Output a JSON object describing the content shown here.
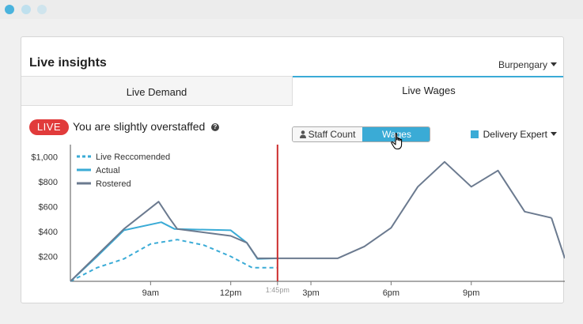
{
  "window": {
    "traffic_lights": [
      "close",
      "minimize",
      "zoom"
    ]
  },
  "card": {
    "title": "Live insights",
    "location": "Burpengary"
  },
  "tabs": [
    {
      "label": "Live Demand",
      "active": false
    },
    {
      "label": "Live Wages",
      "active": true
    }
  ],
  "status": {
    "badge": "LIVE",
    "text": "You are slightly overstaffed",
    "help": "?"
  },
  "toggle": {
    "staff_label": "Staff Count",
    "wages_label": "Wages",
    "selected": "Wages"
  },
  "role": {
    "label": "Delivery Expert",
    "color": "#3aabd6"
  },
  "colors": {
    "accent": "#3aabd6",
    "live": "#e13b3b",
    "rostered": "#6b7a8f",
    "now_line": "#cc2e2e"
  },
  "chart_data": {
    "type": "line",
    "title": "",
    "xlabel": "",
    "ylabel": "",
    "x_ticks": [
      "9am",
      "12pm",
      "1:45pm",
      "3pm",
      "6pm",
      "9pm"
    ],
    "x_tick_hours": [
      9,
      12,
      13.75,
      15,
      18,
      21
    ],
    "now_hour": 13.75,
    "now_label": "1:45pm",
    "xlim": [
      6,
      24.5
    ],
    "y_ticks": [
      "$200",
      "$400",
      "$600",
      "$800",
      "$1,000"
    ],
    "y_tick_values": [
      200,
      400,
      600,
      800,
      1000
    ],
    "ylim": [
      0,
      1130
    ],
    "legend": {
      "position": "top-left"
    },
    "series": [
      {
        "name": "Live Reccomended",
        "style": "dashed",
        "color": "#3aabd6",
        "x": [
          6,
          7,
          8,
          9,
          10,
          11,
          12,
          12.8,
          13.75
        ],
        "y": [
          0,
          110,
          180,
          300,
          335,
          290,
          200,
          110,
          110
        ]
      },
      {
        "name": "Actual",
        "style": "solid",
        "color": "#3aabd6",
        "x": [
          6,
          7,
          8,
          9.4,
          9.9,
          12,
          12.6,
          13,
          13.75
        ],
        "y": [
          0,
          200,
          410,
          475,
          420,
          410,
          310,
          180,
          185
        ]
      },
      {
        "name": "Rostered",
        "style": "solid",
        "color": "#6b7a8f",
        "x": [
          6,
          7,
          8,
          9.3,
          9.7,
          10,
          12,
          12.6,
          13,
          13.75,
          16,
          17,
          18,
          19,
          20,
          21,
          22,
          23,
          24
        ],
        "y": [
          0,
          210,
          420,
          640,
          510,
          420,
          365,
          310,
          185,
          185,
          185,
          280,
          430,
          760,
          960,
          760,
          890,
          560,
          510
        ]
      },
      {
        "name": "",
        "style": "solid",
        "color": "#6b7a8f",
        "x": [
          24,
          24.5
        ],
        "y": [
          510,
          185
        ]
      }
    ]
  }
}
